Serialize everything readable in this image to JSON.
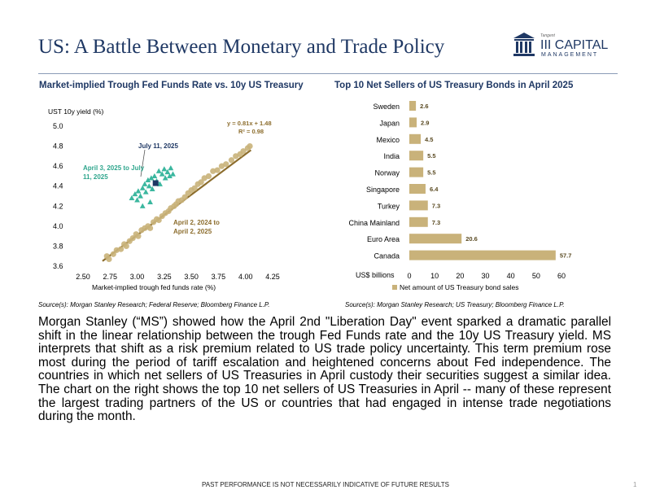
{
  "header": {
    "title": "US: A Battle Between Monetary and Trade Policy",
    "logo_small": "Tangent",
    "logo_line1": "III CAPITAL",
    "logo_line2": "MANAGEMENT"
  },
  "colors": {
    "navy": "#1f3864",
    "gold": "#c9b27a",
    "teal": "#3bb79f",
    "trend": "#8c6d2d"
  },
  "chart_data": [
    {
      "type": "scatter",
      "title": "Market-implied Trough Fed Funds Rate vs. 10y US Treasury",
      "xlabel": "Market-implied trough fed funds rate (%)",
      "ylabel": "UST 10y yield (%)",
      "xlim": [
        2.5,
        4.25
      ],
      "ylim": [
        3.6,
        5.0
      ],
      "x_ticks": [
        "2.50",
        "2.75",
        "3.00",
        "3.25",
        "3.50",
        "3.75",
        "4.00",
        "4.25"
      ],
      "y_ticks": [
        "3.6",
        "3.8",
        "4.0",
        "4.2",
        "4.4",
        "4.6",
        "4.8",
        "5.0"
      ],
      "annotations": {
        "equation": "y = 0.81x + 1.48",
        "r2": "R² = 0.98",
        "highlight": "July 11, 2025",
        "teal_label_1": "April 3, 2025 to July",
        "teal_label_2": "11, 2025",
        "gold_label_1": "April 2, 2024 to",
        "gold_label_2": "April 2, 2025"
      },
      "trendline": {
        "slope": 0.81,
        "intercept": 1.48,
        "x_range": [
          2.68,
          4.05
        ]
      },
      "highlight_point": {
        "x": 3.17,
        "y": 4.43
      },
      "series": [
        {
          "name": "April 2, 2024 to April 2, 2025",
          "points": [
            [
              2.72,
              3.7
            ],
            [
              2.74,
              3.67
            ],
            [
              2.78,
              3.72
            ],
            [
              2.81,
              3.76
            ],
            [
              2.85,
              3.77
            ],
            [
              2.88,
              3.82
            ],
            [
              2.9,
              3.8
            ],
            [
              2.93,
              3.85
            ],
            [
              2.96,
              3.88
            ],
            [
              2.99,
              3.92
            ],
            [
              3.01,
              3.9
            ],
            [
              3.04,
              3.96
            ],
            [
              3.07,
              3.98
            ],
            [
              3.1,
              4.0
            ],
            [
              3.12,
              3.98
            ],
            [
              3.15,
              4.04
            ],
            [
              3.18,
              4.07
            ],
            [
              3.2,
              4.06
            ],
            [
              3.23,
              4.1
            ],
            [
              3.26,
              4.13
            ],
            [
              3.29,
              4.15
            ],
            [
              3.31,
              4.18
            ],
            [
              3.34,
              4.2
            ],
            [
              3.36,
              4.22
            ],
            [
              3.38,
              4.25
            ],
            [
              3.41,
              4.26
            ],
            [
              3.44,
              4.29
            ],
            [
              3.47,
              4.33
            ],
            [
              3.5,
              4.36
            ],
            [
              3.53,
              4.38
            ],
            [
              3.56,
              4.42
            ],
            [
              3.59,
              4.44
            ],
            [
              3.62,
              4.48
            ],
            [
              3.66,
              4.5
            ],
            [
              3.7,
              4.55
            ],
            [
              3.74,
              4.56
            ],
            [
              3.78,
              4.6
            ],
            [
              3.82,
              4.62
            ],
            [
              3.87,
              4.66
            ],
            [
              3.91,
              4.7
            ],
            [
              3.95,
              4.72
            ],
            [
              3.98,
              4.75
            ],
            [
              4.02,
              4.78
            ],
            [
              4.04,
              4.8
            ]
          ]
        },
        {
          "name": "April 3, 2025 to July 11, 2025",
          "points": [
            [
              2.95,
              4.28
            ],
            [
              2.98,
              4.32
            ],
            [
              3.01,
              4.35
            ],
            [
              3.03,
              4.3
            ],
            [
              3.05,
              4.38
            ],
            [
              3.07,
              4.42
            ],
            [
              3.08,
              4.34
            ],
            [
              3.1,
              4.46
            ],
            [
              3.11,
              4.4
            ],
            [
              3.13,
              4.48
            ],
            [
              3.14,
              4.37
            ],
            [
              3.16,
              4.5
            ],
            [
              3.18,
              4.45
            ],
            [
              3.2,
              4.55
            ],
            [
              3.21,
              4.42
            ],
            [
              3.23,
              4.52
            ],
            [
              3.25,
              4.57
            ],
            [
              3.26,
              4.48
            ],
            [
              3.28,
              4.54
            ],
            [
              3.3,
              4.5
            ],
            [
              3.31,
              4.58
            ],
            [
              3.33,
              4.52
            ],
            [
              3.05,
              4.2
            ],
            [
              3.0,
              4.26
            ],
            [
              3.12,
              4.24
            ]
          ]
        }
      ]
    },
    {
      "type": "bar",
      "title": "Top 10 Net Sellers of US Treasury Bonds in April 2025",
      "categories": [
        "Sweden",
        "Japan",
        "Mexico",
        "India",
        "Norway",
        "Singapore",
        "Turkey",
        "China Mainland",
        "Euro Area",
        "Canada"
      ],
      "values": [
        2.6,
        2.9,
        4.5,
        5.5,
        5.5,
        6.4,
        7.3,
        7.3,
        20.6,
        57.7
      ],
      "value_labels": [
        "2.6",
        "2.9",
        "4.5",
        "5.5",
        "5.5",
        "6.4",
        "7.3",
        "7.3",
        "20.6",
        "57.7"
      ],
      "xlim": [
        0,
        60
      ],
      "x_ticks": [
        "0",
        "10",
        "20",
        "30",
        "40",
        "50",
        "60"
      ],
      "xlabel": "US$ billions",
      "legend": "Net amount of US Treasury bond sales",
      "legend_position": "bottom"
    }
  ],
  "sources": {
    "left": "Source(s): Morgan Stanley Research; Federal Reserve; Bloomberg Finance L.P.",
    "right": "Source(s): Morgan Stanley Research; US Treasury; Bloomberg Finance L.P."
  },
  "body": "Morgan Stanley (“MS”) showed how the April 2nd \"Liberation Day\" event sparked a dramatic parallel shift in the linear relationship between the trough Fed Funds rate and the 10y US Treasury yield. MS interprets that shift as a risk premium related to US trade policy uncertainty. This term premium rose most during the period of tariff escalation and heightened concerns about Fed independence. The countries in which net sellers of US Treasuries in April custody their securities suggest a similar idea. The chart on the right shows the top 10 net sellers of US Treasuries in April -- many of these represent the largest trading partners of the US or countries that had engaged in intense trade negotiations during the month.",
  "footer": {
    "disclaimer": "PAST PERFORMANCE IS NOT NECESSARILY INDICATIVE OF FUTURE RESULTS",
    "page_number": "1"
  }
}
